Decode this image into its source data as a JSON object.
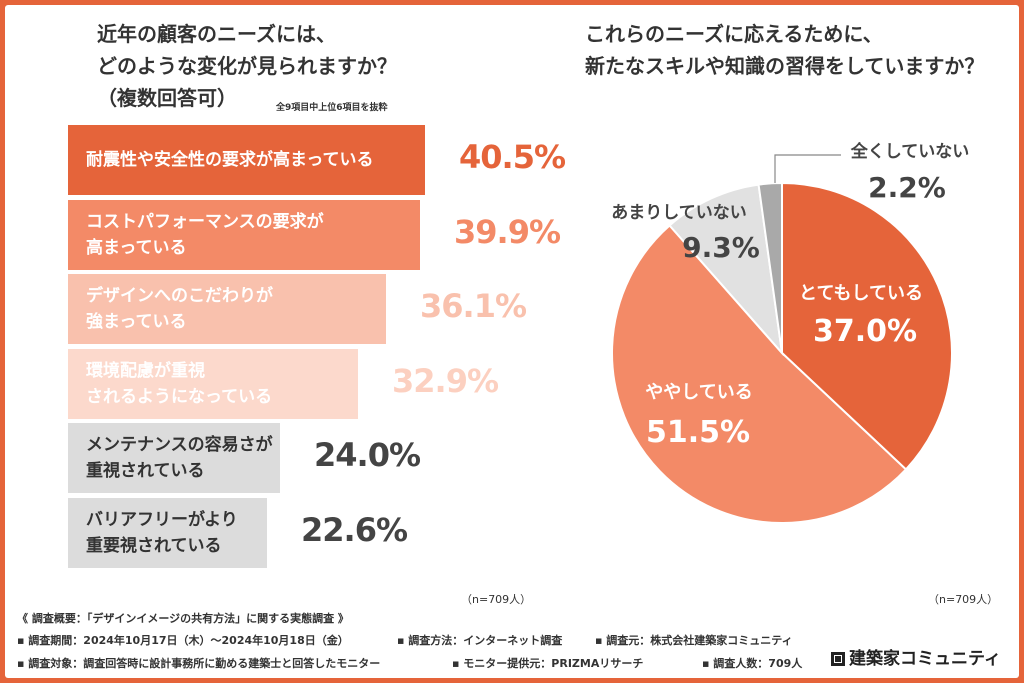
{
  "left": {
    "title_line1": "近年の顧客のニーズには、",
    "title_line2": "どのような変化が見られますか？",
    "title_line3": "（複数回答可）",
    "note": "全9項目中上位6項目を抜粋",
    "n": "（n=709人）"
  },
  "right": {
    "title_line1": "これらのニーズに応えるために、",
    "title_line2": "新たなスキルや知識の習得をしていますか？",
    "n": "（n=709人）"
  },
  "chart_data": [
    {
      "type": "bar",
      "orientation": "horizontal",
      "categories": [
        "耐震性や安全性の要求が高まっている",
        "コストパフォーマンスの要求が\n高まっている",
        "デザインへのこだわりが\n強まっている",
        "環境配慮が重視\nされるようになっている",
        "メンテナンスの容易さが\n重視されている",
        "バリアフリーがより\n重要視されている"
      ],
      "values": [
        40.5,
        39.9,
        36.1,
        32.9,
        24.0,
        22.6
      ],
      "value_labels": [
        "40.5%",
        "39.9%",
        "36.1%",
        "32.9%",
        "24.0%",
        "22.6%"
      ],
      "colors": [
        "#e5643a",
        "#f38a67",
        "#f9c1ad",
        "#fcd9cc",
        "#dcdcdc",
        "#dcdcdc"
      ],
      "label_colors": [
        "#ffffff",
        "#ffffff",
        "#ffffff",
        "#ffffff",
        "#333333",
        "#333333"
      ],
      "value_colors": [
        "#e5643a",
        "#f38a67",
        "#f9c1ad",
        "#fcd0c0",
        "#444444",
        "#444444"
      ],
      "xlim": [
        0,
        40.5
      ]
    },
    {
      "type": "pie",
      "labels": [
        "とてもしている",
        "ややしている",
        "あまりしていない",
        "全くしていない"
      ],
      "values": [
        37.0,
        51.5,
        9.3,
        2.2
      ],
      "value_labels": [
        "37.0%",
        "51.5%",
        "9.3%",
        "2.2%"
      ],
      "colors": [
        "#e5643a",
        "#f38a67",
        "#e1e1e1",
        "#a9a9a9"
      ],
      "start_angle": "12 o'clock",
      "direction": "clockwise"
    }
  ],
  "footer": {
    "line1": "《 調査概要：「デザインイメージの共有方法」に関する実態調査 》",
    "period": "▪ 調査期間：2024年10月17日（木）～2024年10月18日（金）",
    "method": "▪ 調査方法：インターネット調査",
    "source": "▪ 調査元：株式会社建築家コミュニティ",
    "target": "▪ 調査対象：調査回答時に設計事務所に勤める建築士と回答したモニター",
    "provider": "▪ モニター提供元：PRIZMAリサーチ",
    "count": "▪ 調査人数：709人",
    "logo": "建築家コミュニティ"
  }
}
